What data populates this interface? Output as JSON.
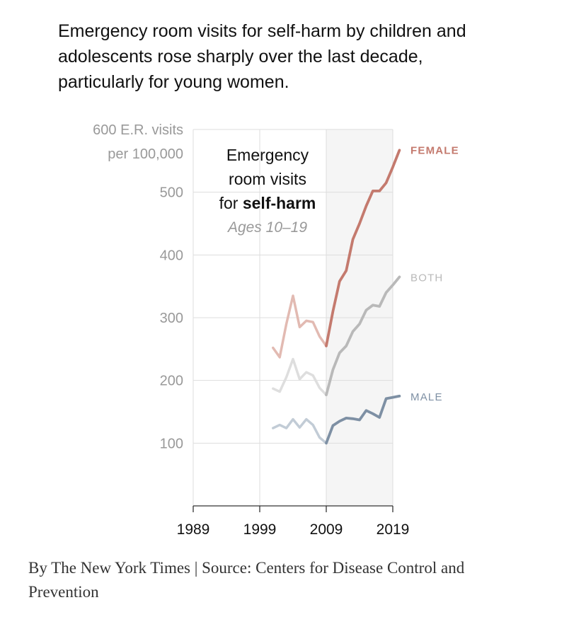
{
  "headline": {
    "line1": "Emergency room visits for self-harm by children and",
    "line2": "adolescents rose sharply over the last decade,",
    "line3": "particularly for young women."
  },
  "credit": {
    "line1": "By The New York Times | Source: Centers for Disease Control and",
    "line2": "Prevention"
  },
  "colors": {
    "female": "#c47a6e",
    "female_faded": "#e2bab2",
    "both": "#b9b9b9",
    "both_faded": "#dedede",
    "male": "#7e90a4",
    "male_faded": "#c2ccd6",
    "highlight_bg": "#f5f5f5",
    "grid": "#dddddd"
  },
  "chart_data": {
    "type": "line",
    "title_lines": [
      "Emergency",
      "room visits"
    ],
    "title_prefix": "for ",
    "title_bold": "self-harm",
    "subtitle": "Ages 10–19",
    "ylabel_top": "600 E.R. visits",
    "ylabel_unit": "per 100,000",
    "y_ticks": [
      "100",
      "200",
      "300",
      "400",
      "500"
    ],
    "y_tick_values": [
      100,
      200,
      300,
      400,
      500
    ],
    "ylim": [
      0,
      600
    ],
    "xlim": [
      1989,
      2019
    ],
    "x_ticks": [
      "1989",
      "1999",
      "2009",
      "2019"
    ],
    "x_tick_values": [
      1989,
      1999,
      2009,
      2019
    ],
    "highlight_range": [
      2009,
      2019
    ],
    "series": [
      {
        "name": "FEMALE",
        "key": "female",
        "x": [
          2001,
          2002,
          2003,
          2004,
          2005,
          2006,
          2007,
          2008,
          2009,
          2010,
          2011,
          2012,
          2013,
          2014,
          2015,
          2016,
          2017,
          2018,
          2019,
          2020
        ],
        "values": [
          252,
          237,
          290,
          335,
          285,
          295,
          293,
          270,
          255,
          310,
          358,
          375,
          425,
          450,
          478,
          502,
          502,
          515,
          540,
          567
        ]
      },
      {
        "name": "BOTH",
        "key": "both",
        "x": [
          2001,
          2002,
          2003,
          2004,
          2005,
          2006,
          2007,
          2008,
          2009,
          2010,
          2011,
          2012,
          2013,
          2014,
          2015,
          2016,
          2017,
          2018,
          2019,
          2020
        ],
        "values": [
          187,
          182,
          205,
          234,
          202,
          213,
          208,
          188,
          177,
          217,
          244,
          255,
          278,
          290,
          312,
          320,
          318,
          340,
          352,
          365
        ]
      },
      {
        "name": "MALE",
        "key": "male",
        "x": [
          2001,
          2002,
          2003,
          2004,
          2005,
          2006,
          2007,
          2008,
          2009,
          2010,
          2011,
          2012,
          2013,
          2014,
          2015,
          2016,
          2017,
          2018,
          2019,
          2020
        ],
        "values": [
          124,
          129,
          124,
          138,
          125,
          138,
          129,
          109,
          100,
          128,
          135,
          140,
          139,
          137,
          152,
          147,
          141,
          171,
          173,
          175
        ]
      }
    ]
  }
}
